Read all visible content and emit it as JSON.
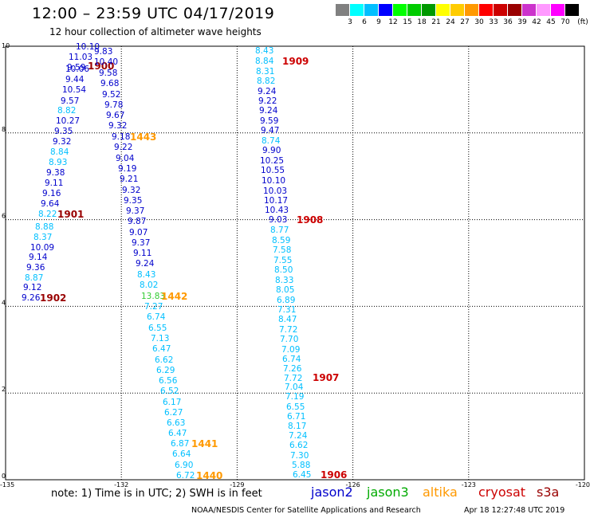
{
  "header": {
    "title": "12:00 – 23:59 UTC 04/17/2019",
    "subtitle": "12 hour collection of altimeter wave heights"
  },
  "colorbar": {
    "unit": "(ft)",
    "colors": [
      "#808080",
      "#00ffff",
      "#00bfff",
      "#0000ff",
      "#00ff00",
      "#00cc00",
      "#009900",
      "#ffff00",
      "#ffcc00",
      "#ff9900",
      "#ff0000",
      "#cc0000",
      "#990000",
      "#cc33cc",
      "#ff99ff",
      "#ff00ff",
      "#000000"
    ],
    "labels": [
      "3",
      "6",
      "9",
      "12",
      "15",
      "18",
      "21",
      "24",
      "27",
      "30",
      "33",
      "36",
      "39",
      "42",
      "45",
      "70"
    ]
  },
  "axes": {
    "x_ticks": [
      "-135",
      "-132",
      "-129",
      "-126",
      "-123",
      "-120"
    ],
    "y_ticks": [
      "0",
      "2",
      "4",
      "6",
      "8",
      "10"
    ]
  },
  "colors": {
    "jason2": "#0000cc",
    "jason3": "#00aa00",
    "altika": "#ff9900",
    "cryosat": "#cc0000",
    "s3a": "#990000"
  },
  "tracks": [
    {
      "label": "1900",
      "sat": "s3a",
      "anchor": [
        110,
        82
      ],
      "values": [
        [
          "10.10",
          [
            95,
            58
          ],
          "#0000cc"
        ],
        [
          "11.03",
          [
            86,
            71
          ],
          "#0000cc"
        ],
        [
          "9.59",
          [
            84,
            84
          ],
          "#0000cc"
        ],
        [
          "10.06",
          [
            82,
            86
          ],
          "#0000cc"
        ],
        [
          "9.44",
          [
            82,
            99
          ],
          "#0000cc"
        ],
        [
          "10.54",
          [
            78,
            112
          ],
          "#0000cc"
        ],
        [
          "9.57",
          [
            76,
            126
          ],
          "#0000cc"
        ],
        [
          "8.82",
          [
            72,
            138
          ],
          "#00bfff"
        ],
        [
          "10.27",
          [
            70,
            151
          ],
          "#0000cc"
        ],
        [
          "9.35",
          [
            68,
            164
          ],
          "#0000cc"
        ],
        [
          "9.32",
          [
            66,
            177
          ],
          "#0000cc"
        ],
        [
          "8.84",
          [
            63,
            190
          ],
          "#00bfff"
        ],
        [
          "8.93",
          [
            61,
            203
          ],
          "#00bfff"
        ],
        [
          "9.38",
          [
            58,
            216
          ],
          "#0000cc"
        ],
        [
          "9.11",
          [
            56,
            229
          ],
          "#0000cc"
        ],
        [
          "9.16",
          [
            53,
            242
          ],
          "#0000cc"
        ],
        [
          "9.64",
          [
            51,
            255
          ],
          "#0000cc"
        ],
        [
          "8.22",
          [
            48,
            268
          ],
          "#00bfff"
        ]
      ]
    },
    {
      "label": "1901",
      "sat": "s3a",
      "anchor": [
        72,
        268
      ],
      "values": []
    },
    {
      "label": "1902",
      "sat": "s3a",
      "anchor": [
        50,
        373
      ],
      "values": [
        [
          "8.88",
          [
            44,
            284
          ],
          "#00bfff"
        ],
        [
          "8.37",
          [
            42,
            297
          ],
          "#00bfff"
        ],
        [
          "10.09",
          [
            38,
            310
          ],
          "#0000cc"
        ],
        [
          "9.14",
          [
            36,
            322
          ],
          "#0000cc"
        ],
        [
          "9.36",
          [
            33,
            335
          ],
          "#0000cc"
        ],
        [
          "8.87",
          [
            31,
            348
          ],
          "#00bfff"
        ],
        [
          "9.12",
          [
            29,
            360
          ],
          "#0000cc"
        ],
        [
          "9.26",
          [
            27,
            373
          ],
          "#0000cc"
        ]
      ]
    },
    {
      "label": "1443",
      "sat": "altika",
      "anchor": [
        163,
        171
      ],
      "values": [
        [
          "9.83",
          [
            118,
            64
          ],
          "#0000cc"
        ],
        [
          "10.40",
          [
            118,
            77
          ],
          "#0000cc"
        ],
        [
          "9.58",
          [
            124,
            91
          ],
          "#0000cc"
        ],
        [
          "9.68",
          [
            126,
            104
          ],
          "#0000cc"
        ],
        [
          "9.52",
          [
            128,
            118
          ],
          "#0000cc"
        ],
        [
          "9.78",
          [
            131,
            131
          ],
          "#0000cc"
        ],
        [
          "9.67",
          [
            133,
            144
          ],
          "#0000cc"
        ],
        [
          "9.32",
          [
            136,
            157
          ],
          "#0000cc"
        ],
        [
          "9.18",
          [
            140,
            171
          ],
          "#0000cc"
        ]
      ]
    },
    {
      "label": "1442",
      "sat": "altika",
      "anchor": [
        202,
        371
      ],
      "values": [
        [
          "9.22",
          [
            143,
            184
          ],
          "#0000cc"
        ],
        [
          "9.04",
          [
            145,
            198
          ],
          "#0000cc"
        ],
        [
          "9.19",
          [
            148,
            211
          ],
          "#0000cc"
        ],
        [
          "9.21",
          [
            150,
            224
          ],
          "#0000cc"
        ],
        [
          "9.32",
          [
            153,
            238
          ],
          "#0000cc"
        ],
        [
          "9.35",
          [
            155,
            251
          ],
          "#0000cc"
        ],
        [
          "9.37",
          [
            158,
            264
          ],
          "#0000cc"
        ],
        [
          "9.87",
          [
            160,
            277
          ],
          "#0000cc"
        ],
        [
          "9.07",
          [
            162,
            291
          ],
          "#0000cc"
        ],
        [
          "9.37",
          [
            165,
            304
          ],
          "#0000cc"
        ],
        [
          "9.11",
          [
            167,
            317
          ],
          "#0000cc"
        ],
        [
          "9.24",
          [
            170,
            330
          ],
          "#0000cc"
        ],
        [
          "8.43",
          [
            172,
            344
          ],
          "#00bfff"
        ],
        [
          "8.02",
          [
            175,
            357
          ],
          "#00bfff"
        ],
        [
          "13.83",
          [
            177,
            371
          ],
          "#33cc33"
        ]
      ]
    },
    {
      "label": "1441",
      "sat": "altika",
      "anchor": [
        240,
        556
      ],
      "values": [
        [
          "7.27",
          [
            181,
            384
          ],
          "#00bfff"
        ],
        [
          "6.74",
          [
            184,
            397
          ],
          "#00bfff"
        ],
        [
          "6.55",
          [
            186,
            411
          ],
          "#00bfff"
        ],
        [
          "7.13",
          [
            189,
            424
          ],
          "#00bfff"
        ],
        [
          "6.47",
          [
            191,
            437
          ],
          "#00bfff"
        ],
        [
          "6.62",
          [
            194,
            451
          ],
          "#00bfff"
        ],
        [
          "6.29",
          [
            196,
            464
          ],
          "#00bfff"
        ],
        [
          "6.56",
          [
            199,
            477
          ],
          "#00bfff"
        ],
        [
          "6.52",
          [
            201,
            490
          ],
          "#00bfff"
        ],
        [
          "6.17",
          [
            204,
            504
          ],
          "#00bfff"
        ],
        [
          "6.27",
          [
            206,
            517
          ],
          "#00bfff"
        ],
        [
          "6.63",
          [
            209,
            530
          ],
          "#00bfff"
        ],
        [
          "6.47",
          [
            211,
            543
          ],
          "#00bfff"
        ],
        [
          "6.87",
          [
            214,
            556
          ],
          "#00bfff"
        ]
      ]
    },
    {
      "label": "1440",
      "sat": "altika",
      "anchor": [
        246,
        596
      ],
      "values": [
        [
          "6.64",
          [
            216,
            569
          ],
          "#00bfff"
        ],
        [
          "6.90",
          [
            219,
            583
          ],
          "#00bfff"
        ],
        [
          "6.72",
          [
            221,
            596
          ],
          "#00bfff"
        ]
      ]
    },
    {
      "label": "1909",
      "sat": "cryosat",
      "anchor": [
        354,
        76
      ],
      "values": [
        [
          "8.43",
          [
            320,
            63
          ],
          "#00bfff"
        ],
        [
          "8.84",
          [
            320,
            76
          ],
          "#00bfff"
        ],
        [
          "8.31",
          [
            321,
            89
          ],
          "#00bfff"
        ],
        [
          "8.82",
          [
            322,
            101
          ],
          "#00bfff"
        ],
        [
          "9.24",
          [
            323,
            114
          ],
          "#0000cc"
        ],
        [
          "9.22",
          [
            324,
            126
          ],
          "#0000cc"
        ],
        [
          "9.24",
          [
            325,
            138
          ],
          "#0000cc"
        ],
        [
          "9.59",
          [
            326,
            151
          ],
          "#0000cc"
        ],
        [
          "9.47",
          [
            327,
            163
          ],
          "#0000cc"
        ],
        [
          "8.74",
          [
            328,
            176
          ],
          "#00bfff"
        ],
        [
          "9.90",
          [
            329,
            188
          ],
          "#0000cc"
        ],
        [
          "10.25",
          [
            326,
            201
          ],
          "#0000cc"
        ],
        [
          "10.55",
          [
            327,
            213
          ],
          "#0000cc"
        ],
        [
          "10.10",
          [
            328,
            226
          ],
          "#0000cc"
        ],
        [
          "10.03",
          [
            330,
            239
          ],
          "#0000cc"
        ],
        [
          "10.17",
          [
            331,
            251
          ],
          "#0000cc"
        ],
        [
          "10.43",
          [
            332,
            263
          ],
          "#0000cc"
        ]
      ]
    },
    {
      "label": "1908",
      "sat": "cryosat",
      "anchor": [
        372,
        275
      ],
      "values": [
        [
          "9.03",
          [
            337,
            275
          ],
          "#0000cc"
        ]
      ]
    },
    {
      "label": "1907",
      "sat": "cryosat",
      "anchor": [
        392,
        473
      ],
      "values": [
        [
          "8.77",
          [
            339,
            288
          ],
          "#00bfff"
        ],
        [
          "8.59",
          [
            341,
            301
          ],
          "#00bfff"
        ],
        [
          "7.58",
          [
            342,
            313
          ],
          "#00bfff"
        ],
        [
          "7.55",
          [
            343,
            326
          ],
          "#00bfff"
        ],
        [
          "8.50",
          [
            344,
            338
          ],
          "#00bfff"
        ],
        [
          "8.33",
          [
            345,
            351
          ],
          "#00bfff"
        ],
        [
          "8.05",
          [
            346,
            363
          ],
          "#00bfff"
        ],
        [
          "6.89",
          [
            347,
            376
          ],
          "#00bfff"
        ],
        [
          "7.31",
          [
            348,
            388
          ],
          "#00bfff"
        ],
        [
          "8.47",
          [
            349,
            400
          ],
          "#00bfff"
        ],
        [
          "7.72",
          [
            350,
            413
          ],
          "#00bfff"
        ],
        [
          "7.70",
          [
            351,
            425
          ],
          "#00bfff"
        ],
        [
          "7.09",
          [
            353,
            438
          ],
          "#00bfff"
        ],
        [
          "6.74",
          [
            354,
            450
          ],
          "#00bfff"
        ],
        [
          "7.26",
          [
            355,
            462
          ],
          "#00bfff"
        ],
        [
          "7.72",
          [
            356,
            474
          ],
          "#00bfff"
        ],
        [
          "7.04",
          [
            357,
            485
          ],
          "#00bfff"
        ]
      ]
    },
    {
      "label": "1906",
      "sat": "cryosat",
      "anchor": [
        402,
        595
      ],
      "values": [
        [
          "7.19",
          [
            358,
            497
          ],
          "#00bfff"
        ],
        [
          "6.55",
          [
            359,
            510
          ],
          "#00bfff"
        ],
        [
          "6.71",
          [
            360,
            522
          ],
          "#00bfff"
        ],
        [
          "8.17",
          [
            361,
            534
          ],
          "#00bfff"
        ],
        [
          "7.24",
          [
            362,
            546
          ],
          "#00bfff"
        ],
        [
          "6.62",
          [
            363,
            558
          ],
          "#00bfff"
        ],
        [
          "7.30",
          [
            364,
            571
          ],
          "#00bfff"
        ],
        [
          "5.88",
          [
            366,
            583
          ],
          "#00bfff"
        ],
        [
          "6.45",
          [
            367,
            595
          ],
          "#00bfff"
        ]
      ]
    }
  ],
  "footer": {
    "note": "note:  1) Time is in UTC;  2) SWH is in feet",
    "legend": [
      {
        "name": "jason2",
        "color": "#0000cc"
      },
      {
        "name": "jason3",
        "color": "#00aa00"
      },
      {
        "name": "altika",
        "color": "#ff9900"
      },
      {
        "name": "cryosat",
        "color": "#cc0000"
      },
      {
        "name": "s3a",
        "color": "#990000"
      }
    ],
    "credit": "NOAA/NESDIS Center for Satellite Applications and Research",
    "timestamp": "Apr 18 12:27:48 UTC 2019"
  }
}
